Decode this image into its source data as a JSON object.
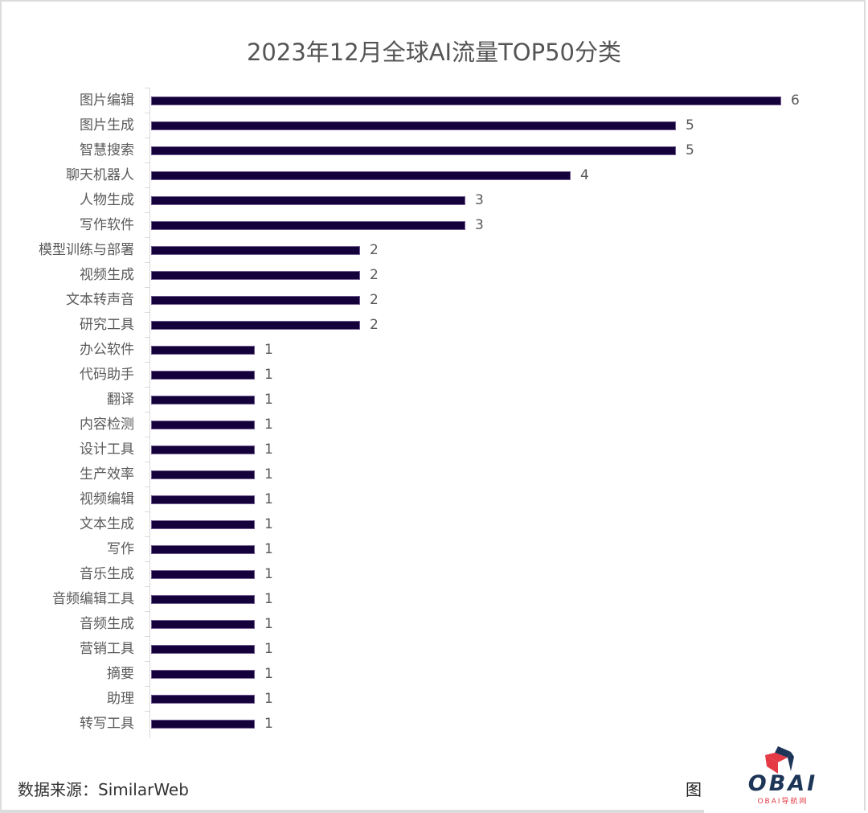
{
  "title": "2023年12月全球AI流量TOP50分类",
  "footer": {
    "source": "数据来源：SimilarWeb",
    "figure_char": "图",
    "logo_text": "OBAI",
    "logo_subtext": "OBAI导航网",
    "logo_colors": {
      "primary": "#1d3557",
      "accent": "#e63946"
    }
  },
  "chart_data": {
    "type": "bar",
    "orientation": "horizontal",
    "title": "2023年12月全球AI流量TOP50分类",
    "xlabel": "",
    "ylabel": "",
    "categories": [
      "图片编辑",
      "图片生成",
      "智慧搜索",
      "聊天机器人",
      "人物生成",
      "写作软件",
      "模型训练与部署",
      "视频生成",
      "文本转声音",
      "研究工具",
      "办公软件",
      "代码助手",
      "翻译",
      "内容检测",
      "设计工具",
      "生产效率",
      "视频编辑",
      "文本生成",
      "写作",
      "音乐生成",
      "音频编辑工具",
      "音频生成",
      "营销工具",
      "摘要",
      "助理",
      "转写工具"
    ],
    "values": [
      6,
      5,
      5,
      4,
      3,
      3,
      2,
      2,
      2,
      2,
      1,
      1,
      1,
      1,
      1,
      1,
      1,
      1,
      1,
      1,
      1,
      1,
      1,
      1,
      1,
      1
    ],
    "xlim": [
      0,
      6
    ],
    "grid": false,
    "data_labels": true,
    "bar_color": "#14003a",
    "legend": null,
    "source": "SimilarWeb"
  }
}
